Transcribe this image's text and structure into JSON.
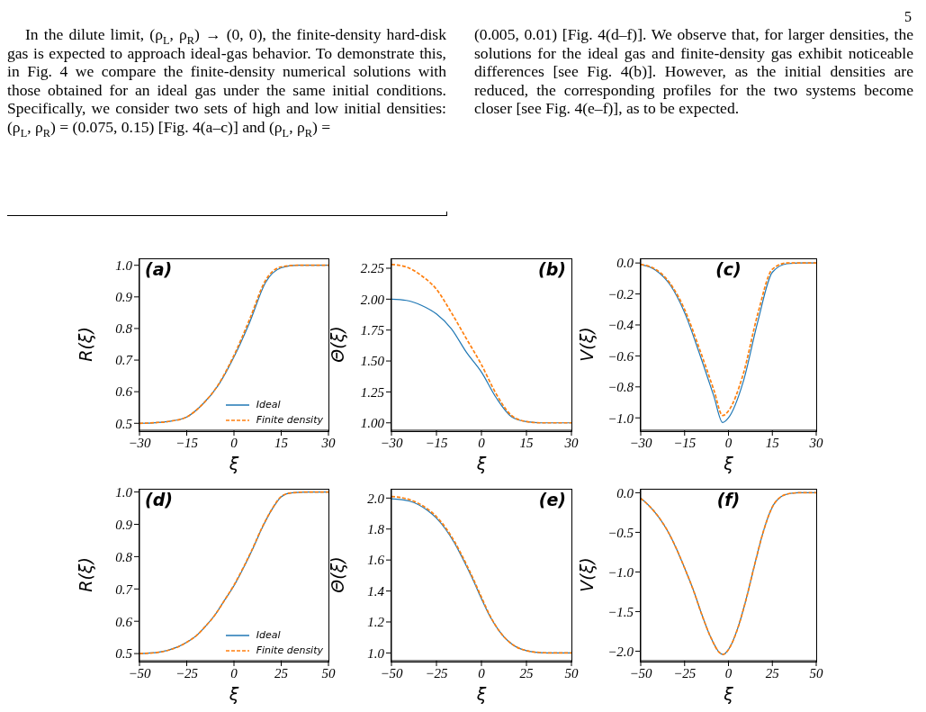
{
  "chart_data": [
    {
      "type": "other",
      "annotations": [
        "5",
        "In the dilute limit, (ρ$_{L}$, ρ$_{R}$) → (0, 0), the finite-density hard-disk gas is expected to approach ideal-gas behavior. To demonstrate this, in Fig. 4 we compare the finite-density numerical solutions with those obtained for an ideal gas under the same initial conditions. Specifically, we consider two sets of high and low initial densities: (ρ$_{L}$, ρ$_{R}$) = (0.075, 0.15) [Fig. 4(a–c)] and (ρ$_{L}$, ρ$_{R}$) =",
        "(0.005, 0.01) [Fig. 4(d–f)]. We observe that, for larger densities, the solutions for the ideal gas and finite-density gas exhibit noticeable differences [see Fig. 4(b)]. However, as the initial densities are reduced, the corresponding profiles for the two systems become closer [see Fig. 4(e–f)], as to be expected."
      ]
    },
    {
      "type": "line",
      "title": "(a)",
      "xlabel": "ξ",
      "ylabel": "R(ξ)",
      "marker": "none",
      "legend": "bottom right",
      "xlim": [
        -30,
        30
      ],
      "xticks": [
        {
          "value": -30,
          "label": "−30"
        },
        {
          "value": -15,
          "label": "−15"
        },
        {
          "value": 0,
          "label": "0"
        },
        {
          "value": 15,
          "label": "15"
        },
        {
          "value": 30,
          "label": "30"
        }
      ],
      "ylim": [
        0.478,
        1.022
      ],
      "yticks": [
        {
          "value": 0.5,
          "label": "0.5"
        },
        {
          "value": 0.6,
          "label": "0.6"
        },
        {
          "value": 0.7,
          "label": "0.7"
        },
        {
          "value": 0.8,
          "label": "0.8"
        },
        {
          "value": 0.9,
          "label": "0.9"
        },
        {
          "value": 1,
          "label": "1.0"
        }
      ],
      "x": [
        -30,
        -25,
        -20,
        -15,
        -10,
        -5,
        0,
        5,
        10,
        15,
        20,
        25,
        30
      ],
      "series": [
        {
          "name": "Ideal",
          "color": "#1f77b4",
          "line_style": "solid",
          "values": [
            0.5,
            0.502,
            0.507,
            0.52,
            0.56,
            0.62,
            0.71,
            0.82,
            0.945,
            0.992,
            1.0,
            1.0,
            1.0
          ]
        },
        {
          "name": "Finite density",
          "color": "#ff7f0e",
          "line_style": "dashed",
          "values": [
            0.5,
            0.502,
            0.507,
            0.52,
            0.56,
            0.622,
            0.715,
            0.83,
            0.952,
            0.995,
            1.0,
            1.0,
            1.0
          ]
        }
      ]
    },
    {
      "type": "line",
      "title": "(b)",
      "xlabel": "ξ",
      "ylabel": "Θ(ξ)",
      "marker": "none",
      "xlim": [
        -30,
        30
      ],
      "xticks": [
        {
          "value": -30,
          "label": "−30"
        },
        {
          "value": -15,
          "label": "−15"
        },
        {
          "value": 0,
          "label": "0"
        },
        {
          "value": 15,
          "label": "15"
        },
        {
          "value": 30,
          "label": "30"
        }
      ],
      "ylim": [
        0.94,
        2.33
      ],
      "yticks": [
        {
          "value": 1,
          "label": "1.00"
        },
        {
          "value": 1.25,
          "label": "1.25"
        },
        {
          "value": 1.5,
          "label": "1.50"
        },
        {
          "value": 1.75,
          "label": "1.75"
        },
        {
          "value": 2,
          "label": "2.00"
        },
        {
          "value": 2.25,
          "label": "2.25"
        }
      ],
      "x": [
        -30,
        -25,
        -20,
        -15,
        -10,
        -5,
        0,
        5,
        10,
        15,
        20,
        25,
        30
      ],
      "series": [
        {
          "color": "#1f77b4",
          "line_style": "solid",
          "values": [
            2.0,
            1.99,
            1.95,
            1.88,
            1.76,
            1.57,
            1.41,
            1.2,
            1.05,
            1.01,
            1.0,
            1.0,
            1.0
          ]
        },
        {
          "color": "#ff7f0e",
          "line_style": "dashed",
          "values": [
            2.28,
            2.26,
            2.19,
            2.08,
            1.89,
            1.68,
            1.47,
            1.23,
            1.06,
            1.01,
            1.0,
            1.0,
            1.0
          ]
        }
      ]
    },
    {
      "type": "line",
      "title": "(c)",
      "xlabel": "ξ",
      "ylabel": "V(ξ)",
      "marker": "none",
      "xlim": [
        -30,
        30
      ],
      "xticks": [
        {
          "value": -30,
          "label": "−30"
        },
        {
          "value": -15,
          "label": "−15"
        },
        {
          "value": 0,
          "label": "0"
        },
        {
          "value": 15,
          "label": "15"
        },
        {
          "value": 30,
          "label": "30"
        }
      ],
      "ylim": [
        -1.08,
        0.03
      ],
      "yticks": [
        {
          "value": -1,
          "label": "−1.0"
        },
        {
          "value": -0.8,
          "label": "−0.8"
        },
        {
          "value": -0.6,
          "label": "−0.6"
        },
        {
          "value": -0.4,
          "label": "−0.4"
        },
        {
          "value": -0.2,
          "label": "−0.2"
        },
        {
          "value": 0,
          "label": "0.0"
        }
      ],
      "x": [
        -30,
        -25,
        -20,
        -15,
        -10,
        -5,
        -2,
        0,
        5,
        10,
        15,
        20,
        25,
        30
      ],
      "series": [
        {
          "color": "#1f77b4",
          "line_style": "solid",
          "values": [
            -0.01,
            -0.045,
            -0.14,
            -0.32,
            -0.58,
            -0.86,
            -1.03,
            -1.0,
            -0.77,
            -0.38,
            -0.06,
            -0.005,
            0,
            0
          ]
        },
        {
          "color": "#ff7f0e",
          "line_style": "dashed",
          "values": [
            -0.01,
            -0.04,
            -0.13,
            -0.3,
            -0.55,
            -0.82,
            -0.985,
            -0.955,
            -0.72,
            -0.33,
            -0.04,
            0,
            0,
            0
          ]
        }
      ]
    },
    {
      "type": "line",
      "title": "(d)",
      "xlabel": "ξ",
      "ylabel": "R(ξ)",
      "marker": "none",
      "legend": "bottom right",
      "xlim": [
        -50,
        50
      ],
      "xticks": [
        {
          "value": -50,
          "label": "−50"
        },
        {
          "value": -25,
          "label": "−25"
        },
        {
          "value": 0,
          "label": "0"
        },
        {
          "value": 25,
          "label": "25"
        },
        {
          "value": 50,
          "label": "50"
        }
      ],
      "ylim": [
        0.478,
        1.01
      ],
      "yticks": [
        {
          "value": 0.5,
          "label": "0.5"
        },
        {
          "value": 0.6,
          "label": "0.6"
        },
        {
          "value": 0.7,
          "label": "0.7"
        },
        {
          "value": 0.8,
          "label": "0.8"
        },
        {
          "value": 0.9,
          "label": "0.9"
        },
        {
          "value": 1,
          "label": "1.0"
        }
      ],
      "x": [
        -50,
        -40,
        -30,
        -25,
        -20,
        -15,
        -10,
        -5,
        0,
        5,
        10,
        15,
        20,
        25,
        30,
        40,
        50
      ],
      "series": [
        {
          "name": "Ideal",
          "color": "#1f77b4",
          "line_style": "solid",
          "values": [
            0.5,
            0.504,
            0.52,
            0.535,
            0.555,
            0.585,
            0.62,
            0.665,
            0.71,
            0.765,
            0.825,
            0.89,
            0.945,
            0.985,
            0.997,
            1.0,
            1.0
          ]
        },
        {
          "name": "Finite density",
          "color": "#ff7f0e",
          "line_style": "dashed",
          "values": [
            0.5,
            0.504,
            0.52,
            0.535,
            0.555,
            0.585,
            0.62,
            0.665,
            0.712,
            0.767,
            0.827,
            0.892,
            0.946,
            0.986,
            0.997,
            1.0,
            1.0
          ]
        }
      ]
    },
    {
      "type": "line",
      "title": "(e)",
      "xlabel": "ξ",
      "ylabel": "Θ(ξ)",
      "marker": "none",
      "xlim": [
        -50,
        50
      ],
      "xticks": [
        {
          "value": -50,
          "label": "−50"
        },
        {
          "value": -25,
          "label": "−25"
        },
        {
          "value": 0,
          "label": "0"
        },
        {
          "value": 25,
          "label": "25"
        },
        {
          "value": 50,
          "label": "50"
        }
      ],
      "ylim": [
        0.95,
        2.06
      ],
      "yticks": [
        {
          "value": 1,
          "label": "1.0"
        },
        {
          "value": 1.2,
          "label": "1.2"
        },
        {
          "value": 1.4,
          "label": "1.4"
        },
        {
          "value": 1.6,
          "label": "1.6"
        },
        {
          "value": 1.8,
          "label": "1.8"
        },
        {
          "value": 2,
          "label": "2.0"
        }
      ],
      "x": [
        -50,
        -40,
        -30,
        -25,
        -20,
        -15,
        -10,
        -5,
        0,
        5,
        10,
        15,
        20,
        25,
        30,
        40,
        50
      ],
      "series": [
        {
          "color": "#1f77b4",
          "line_style": "solid",
          "values": [
            1.995,
            1.98,
            1.92,
            1.87,
            1.8,
            1.71,
            1.6,
            1.48,
            1.35,
            1.23,
            1.14,
            1.075,
            1.035,
            1.015,
            1.005,
            1.0,
            1.0
          ]
        },
        {
          "color": "#ff7f0e",
          "line_style": "dashed",
          "values": [
            2.01,
            1.99,
            1.93,
            1.88,
            1.81,
            1.72,
            1.61,
            1.49,
            1.36,
            1.235,
            1.14,
            1.075,
            1.035,
            1.015,
            1.005,
            1.0,
            1.0
          ]
        }
      ]
    },
    {
      "type": "line",
      "title": "(f)",
      "xlabel": "ξ",
      "ylabel": "V(ξ)",
      "marker": "none",
      "xlim": [
        -50,
        50
      ],
      "xticks": [
        {
          "value": -50,
          "label": "−50"
        },
        {
          "value": -25,
          "label": "−25"
        },
        {
          "value": 0,
          "label": "0"
        },
        {
          "value": 25,
          "label": "25"
        },
        {
          "value": 50,
          "label": "50"
        }
      ],
      "ylim": [
        -2.12,
        0.05
      ],
      "yticks": [
        {
          "value": -2,
          "label": "−2.0"
        },
        {
          "value": -1.5,
          "label": "−1.5"
        },
        {
          "value": -1,
          "label": "−1.0"
        },
        {
          "value": -0.5,
          "label": "−0.5"
        },
        {
          "value": 0,
          "label": "0.0"
        }
      ],
      "x": [
        -50,
        -45,
        -40,
        -35,
        -30,
        -25,
        -20,
        -15,
        -10,
        -5,
        -3,
        0,
        5,
        10,
        15,
        20,
        25,
        30,
        35,
        40,
        50
      ],
      "series": [
        {
          "color": "#1f77b4",
          "line_style": "solid",
          "values": [
            -0.07,
            -0.17,
            -0.3,
            -0.47,
            -0.69,
            -0.95,
            -1.23,
            -1.55,
            -1.83,
            -2.02,
            -2.04,
            -1.98,
            -1.73,
            -1.35,
            -0.9,
            -0.48,
            -0.18,
            -0.05,
            -0.01,
            0,
            0
          ]
        },
        {
          "color": "#ff7f0e",
          "line_style": "dashed",
          "values": [
            -0.07,
            -0.17,
            -0.3,
            -0.47,
            -0.69,
            -0.95,
            -1.23,
            -1.55,
            -1.83,
            -2.02,
            -2.04,
            -1.98,
            -1.73,
            -1.35,
            -0.9,
            -0.48,
            -0.18,
            -0.05,
            -0.01,
            0,
            0
          ]
        }
      ]
    }
  ]
}
